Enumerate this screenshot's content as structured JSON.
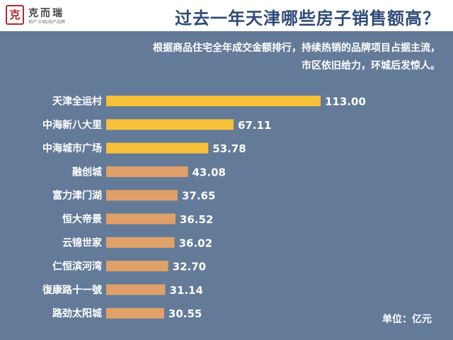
{
  "header": {
    "logo_mark": "克",
    "logo_name": "克而瑞",
    "logo_tagline": "地产·中国|地产品牌",
    "title": "过去一年天津哪些房子销售额高？"
  },
  "subtitle": {
    "line1": "根据商品住宅全年成交金额排行，持续热销的品牌项目占据主流，",
    "line2": "市区依旧给力，环城后发惊人。"
  },
  "unit_label": "单位：亿元",
  "colors": {
    "panel": "#637b98",
    "bar_top": "#f7c13a",
    "bar_rest": "#e0a06a",
    "title": "#2f4a78"
  },
  "chart_data": {
    "type": "bar",
    "orientation": "horizontal",
    "categories": [
      "天津全运村",
      "中海新八大里",
      "中海城市广场",
      "融创城",
      "富力津门湖",
      "恒大帝景",
      "云锦世家",
      "仁恒滨河湾",
      "復康路十一號",
      "路劲太阳城"
    ],
    "values": [
      113.0,
      67.11,
      53.78,
      43.08,
      37.65,
      36.52,
      36.02,
      32.7,
      31.14,
      30.55
    ],
    "value_labels": [
      "113.00",
      "67.11",
      "53.78",
      "43.08",
      "37.65",
      "36.52",
      "36.02",
      "32.70",
      "31.14",
      "30.55"
    ],
    "xlim": [
      0,
      113
    ],
    "grid": false,
    "legend": "none"
  }
}
